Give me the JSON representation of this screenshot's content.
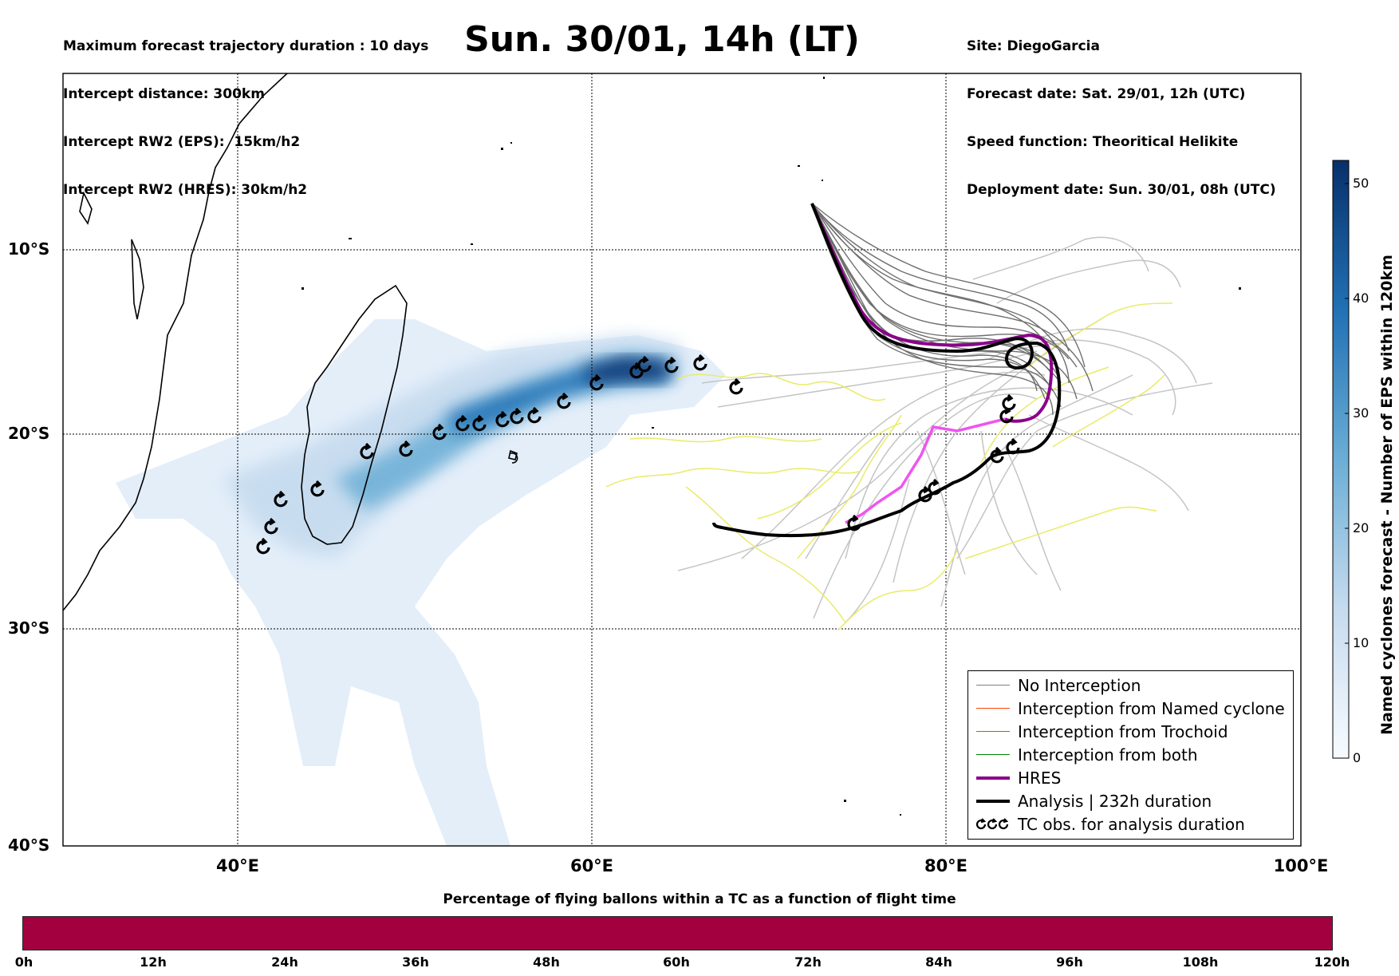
{
  "header_left": [
    "Maximum forecast trajectory duration : 10 days",
    "Intercept distance: 300km",
    "Intercept RW2 (EPS):  15km/h2",
    "Intercept RW2 (HRES): 30km/h2"
  ],
  "title": "Sun. 30/01, 14h (LT)",
  "header_right": [
    "Site: DiegoGarcia",
    "Forecast date: Sat. 29/01, 12h (UTC)",
    "Speed function: Theoritical Helikite",
    "Deployment date: Sun. 30/01, 08h (UTC)"
  ],
  "map": {
    "lat_labels": [
      "10°S",
      "20°S",
      "30°S",
      "40°S"
    ],
    "lon_labels": [
      "40°E",
      "60°E",
      "80°E",
      "100°E"
    ],
    "lon_range": [
      30,
      100
    ],
    "lat_range": [
      -40,
      2
    ]
  },
  "colorbar": {
    "label": "Named cyclones forecast - Number of EPS within 120km",
    "ticks": [
      "0",
      "10",
      "20",
      "30",
      "40",
      "50"
    ],
    "range": [
      0,
      52
    ],
    "colors": [
      "#f7fbff",
      "#c6dbef",
      "#6baed6",
      "#2171b5",
      "#08306b"
    ]
  },
  "legend": {
    "items": [
      {
        "label": "No Interception",
        "color": "#808080"
      },
      {
        "label": "Interception from Named cyclone",
        "color": "#ff4500"
      },
      {
        "label": "Interception from Trochoid",
        "color": "#808000"
      },
      {
        "label": "Interception from both",
        "color": "#008000"
      },
      {
        "label": "HRES",
        "color": "#8b008b"
      },
      {
        "label": "Analysis | 232h duration",
        "color": "#000000"
      },
      {
        "label": "TC obs. for analysis duration",
        "color": "#000000"
      }
    ]
  },
  "bottom_bar": {
    "title": "Percentage of flying ballons within a TC as a function of flight time",
    "ticks": [
      "0h",
      "12h",
      "24h",
      "36h",
      "48h",
      "60h",
      "72h",
      "84h",
      "96h",
      "108h",
      "120h"
    ],
    "color": "#a3003f"
  }
}
